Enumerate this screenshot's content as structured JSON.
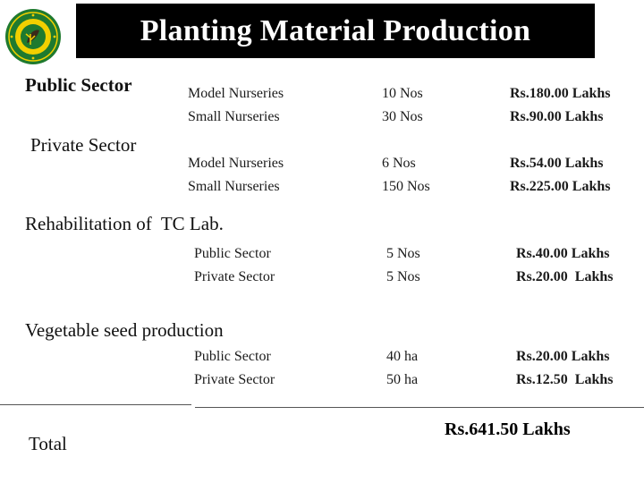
{
  "title": "Planting Material Production",
  "logo": {
    "icon": "emblem-seal-icon",
    "colors": {
      "outer": "#1f7a2f",
      "inner": "#f2d000",
      "center": "#3a2a1a"
    }
  },
  "colors": {
    "title_bg": "#000000",
    "title_text": "#ffffff"
  },
  "sections": {
    "public": {
      "heading": "Public Sector",
      "rows": [
        {
          "label": "Model Nurseries",
          "qty": "10 Nos",
          "cost": "Rs.180.00 Lakhs"
        },
        {
          "label": "Small Nurseries",
          "qty": "30 Nos",
          "cost": "Rs.90.00 Lakhs"
        }
      ]
    },
    "private": {
      "heading": "Private Sector",
      "rows": [
        {
          "label": "Model Nurseries",
          "qty": "6 Nos",
          "cost": "Rs.54.00 Lakhs"
        },
        {
          "label": "Small Nurseries",
          "qty": "150 Nos",
          "cost": "Rs.225.00 Lakhs"
        }
      ]
    },
    "tc_lab": {
      "heading": "Rehabilitation of  TC Lab.",
      "rows": [
        {
          "label": "Public Sector",
          "qty": "5 Nos",
          "cost": "Rs.40.00 Lakhs"
        },
        {
          "label": "Private Sector",
          "qty": "5 Nos",
          "cost": "Rs.20.00  Lakhs"
        }
      ]
    },
    "vegetable": {
      "heading": "Vegetable seed production",
      "rows": [
        {
          "label": "Public Sector",
          "qty": "40 ha",
          "cost": "Rs.20.00 Lakhs"
        },
        {
          "label": "Private Sector",
          "qty": "50 ha",
          "cost": "Rs.12.50  Lakhs"
        }
      ]
    }
  },
  "total": {
    "label": "Total",
    "value": "Rs.641.50 Lakhs"
  }
}
